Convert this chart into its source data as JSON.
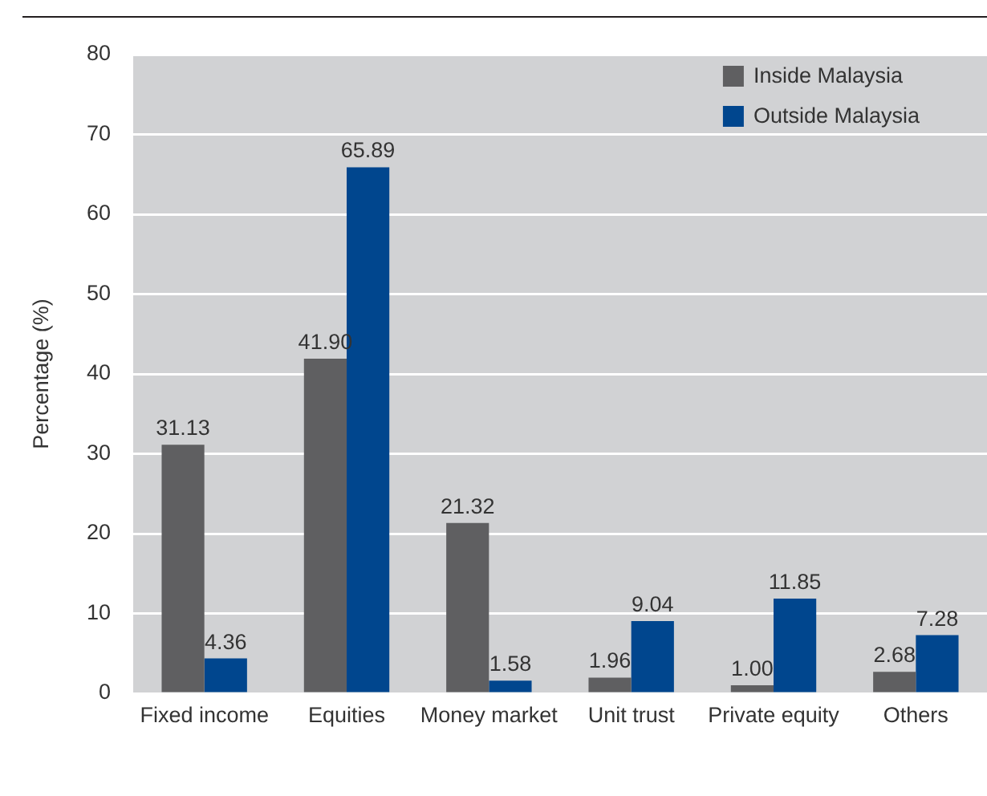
{
  "chart_data": {
    "type": "bar",
    "ylabel": "Percentage (%)",
    "categories": [
      "Fixed income",
      "Equities",
      "Money market",
      "Unit trust",
      "Private equity",
      "Others"
    ],
    "series": [
      {
        "name": "Inside Malaysia",
        "color": "#5f5f61",
        "values": [
          31.13,
          41.9,
          21.32,
          1.96,
          1.0,
          2.68
        ],
        "value_labels": [
          "31.13",
          "41.90",
          "21.32",
          "1.96",
          "1.00",
          "2.68"
        ]
      },
      {
        "name": "Outside Malaysia",
        "color": "#00468e",
        "values": [
          4.36,
          65.89,
          1.58,
          9.04,
          11.85,
          7.28
        ],
        "value_labels": [
          "4.36",
          "65.89",
          "1.58",
          "9.04",
          "11.85",
          "7.28"
        ]
      }
    ],
    "ylim": [
      0,
      80
    ],
    "yticks": [
      0,
      10,
      20,
      30,
      40,
      50,
      60,
      70,
      80
    ],
    "grid": "y",
    "legend": "top right"
  }
}
